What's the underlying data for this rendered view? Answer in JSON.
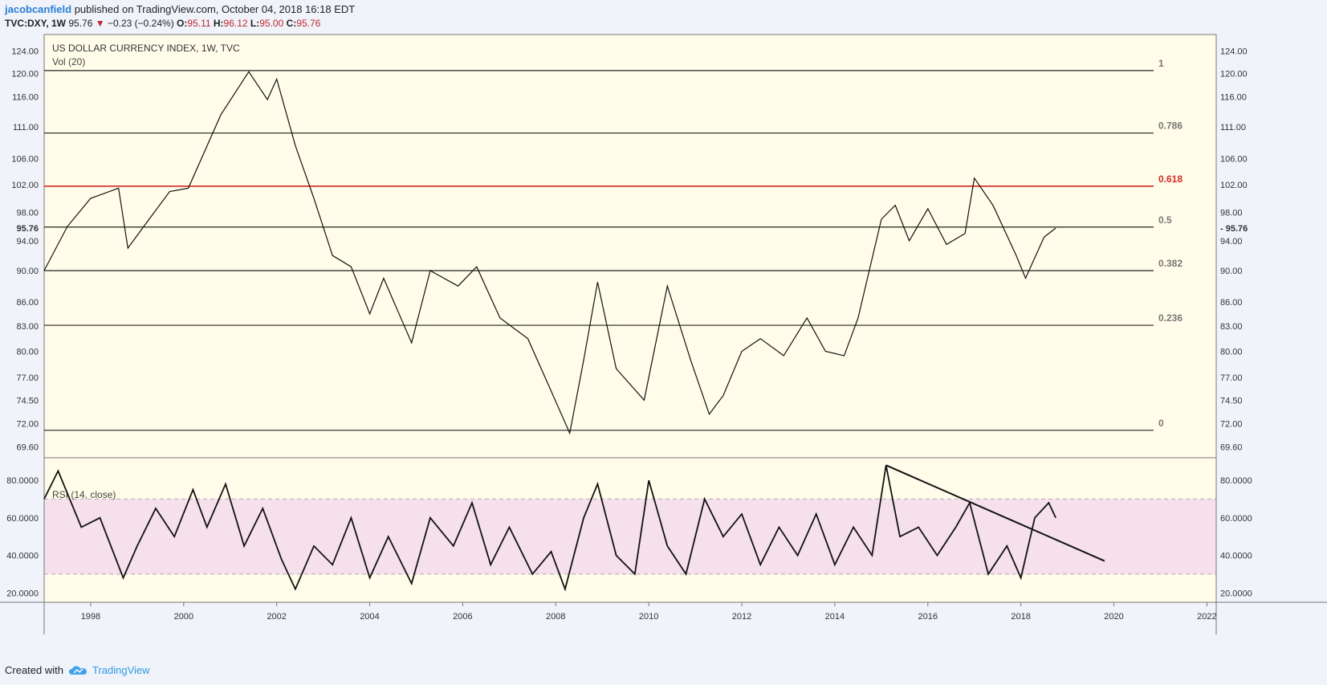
{
  "header": {
    "author": "jacobcanfield",
    "published": " published on TradingView.com, October 04, 2018 16:18 EDT",
    "symbol": "TVC:DXY, 1W",
    "last": "95.76",
    "change": "−0.23 (−0.24%)",
    "o_label": "O:",
    "o_value": "95.11",
    "h_label": "H:",
    "h_value": "96.12",
    "l_label": "L:",
    "l_value": "95.00",
    "c_label": "C:",
    "c_value": "95.76"
  },
  "footer": {
    "created_with": "Created with",
    "brand": "TradingView"
  },
  "colors": {
    "pane_bg": "#fffde9",
    "rsi_band": "#f5e0ec",
    "fib_red": "#d42a2a",
    "line": "#111111"
  },
  "chart_data": [
    {
      "type": "line",
      "title": "US DOLLAR CURRENCY INDEX, 1W, TVC",
      "indicator": "Vol (20)",
      "y_ticks": [
        124.0,
        120.0,
        116.0,
        111.0,
        106.0,
        102.0,
        98.0,
        94.0,
        90.0,
        86.0,
        83.0,
        80.0,
        77.0,
        74.5,
        72.0,
        69.6
      ],
      "y_tick_labels": [
        "124.00",
        "120.00",
        "116.00",
        "111.00",
        "106.00",
        "102.00",
        "98.00",
        "94.00",
        "90.00",
        "86.00",
        "83.00",
        "80.00",
        "77.00",
        "74.50",
        "72.00",
        "69.60"
      ],
      "last_price_label": "95.76",
      "last_price": 95.76,
      "fib_levels": [
        {
          "label": "1",
          "value": 120.5,
          "highlight": false
        },
        {
          "label": "0.786",
          "value": 110.0,
          "highlight": false
        },
        {
          "label": "0.618",
          "value": 101.8,
          "highlight": true
        },
        {
          "label": "0.5",
          "value": 95.9,
          "highlight": false
        },
        {
          "label": "0.382",
          "value": 90.0,
          "highlight": false
        },
        {
          "label": "0.236",
          "value": 83.1,
          "highlight": false
        },
        {
          "label": "0",
          "value": 71.3,
          "highlight": false
        }
      ],
      "x": [
        1997.0,
        1997.5,
        1998.0,
        1998.6,
        1998.8,
        1999.2,
        1999.7,
        2000.1,
        2000.8,
        2001.4,
        2001.8,
        2002.0,
        2002.4,
        2002.8,
        2003.2,
        2003.6,
        2004.0,
        2004.3,
        2004.9,
        2005.3,
        2005.9,
        2006.3,
        2006.8,
        2007.4,
        2007.9,
        2008.3,
        2008.6,
        2008.9,
        2009.3,
        2009.9,
        2010.4,
        2010.9,
        2011.3,
        2011.6,
        2012.0,
        2012.4,
        2012.9,
        2013.4,
        2013.8,
        2014.2,
        2014.5,
        2015.0,
        2015.3,
        2015.6,
        2016.0,
        2016.4,
        2016.8,
        2017.0,
        2017.4,
        2017.9,
        2018.1,
        2018.5,
        2018.75
      ],
      "values": [
        90.0,
        96.0,
        100.0,
        101.5,
        93.0,
        96.5,
        101.0,
        101.5,
        113.0,
        120.3,
        115.5,
        119.0,
        108.0,
        100.0,
        92.0,
        90.5,
        84.5,
        89.0,
        81.0,
        90.0,
        88.0,
        90.5,
        84.0,
        81.5,
        75.5,
        71.0,
        79.0,
        88.5,
        78.0,
        74.5,
        88.0,
        79.0,
        73.0,
        75.0,
        80.0,
        81.5,
        79.5,
        84.0,
        80.0,
        79.5,
        84.0,
        97.0,
        99.0,
        94.0,
        98.5,
        93.5,
        95.0,
        103.0,
        99.0,
        92.0,
        89.0,
        94.5,
        95.76
      ]
    },
    {
      "type": "line",
      "title": "RSI (14, close)",
      "y_tick_labels": [
        "80.0000",
        "60.0000",
        "40.0000",
        "20.0000"
      ],
      "y_ticks": [
        80,
        60,
        40,
        20
      ],
      "band": [
        30,
        70
      ],
      "x_tick_labels": [
        "1998",
        "2000",
        "2002",
        "2004",
        "2006",
        "2008",
        "2010",
        "2012",
        "2014",
        "2016",
        "2018",
        "2020",
        "2022"
      ],
      "x_ticks": [
        1998,
        2000,
        2002,
        2004,
        2006,
        2008,
        2010,
        2012,
        2014,
        2016,
        2018,
        2020,
        2022
      ],
      "x_range": [
        1997.0,
        2022.2
      ],
      "x": [
        1997.0,
        1997.3,
        1997.8,
        1998.2,
        1998.7,
        1999.0,
        1999.4,
        1999.8,
        2000.2,
        2000.5,
        2000.9,
        2001.3,
        2001.7,
        2002.1,
        2002.4,
        2002.8,
        2003.2,
        2003.6,
        2004.0,
        2004.4,
        2004.9,
        2005.3,
        2005.8,
        2006.2,
        2006.6,
        2007.0,
        2007.5,
        2007.9,
        2008.2,
        2008.6,
        2008.9,
        2009.3,
        2009.7,
        2010.0,
        2010.4,
        2010.8,
        2011.2,
        2011.6,
        2012.0,
        2012.4,
        2012.8,
        2013.2,
        2013.6,
        2014.0,
        2014.4,
        2014.8,
        2015.1,
        2015.4,
        2015.8,
        2016.2,
        2016.6,
        2016.9,
        2017.3,
        2017.7,
        2018.0,
        2018.3,
        2018.6,
        2018.75
      ],
      "values": [
        70,
        85,
        55,
        60,
        28,
        45,
        65,
        50,
        75,
        55,
        78,
        45,
        65,
        38,
        22,
        45,
        35,
        60,
        28,
        50,
        25,
        60,
        45,
        68,
        35,
        55,
        30,
        42,
        22,
        60,
        78,
        40,
        30,
        80,
        45,
        30,
        70,
        50,
        62,
        35,
        55,
        40,
        62,
        35,
        55,
        40,
        88,
        50,
        55,
        40,
        55,
        68,
        30,
        45,
        28,
        60,
        68,
        60
      ],
      "trendline": {
        "x1": 2015.1,
        "y1": 88,
        "x2": 2019.8,
        "y2": 37
      }
    }
  ]
}
